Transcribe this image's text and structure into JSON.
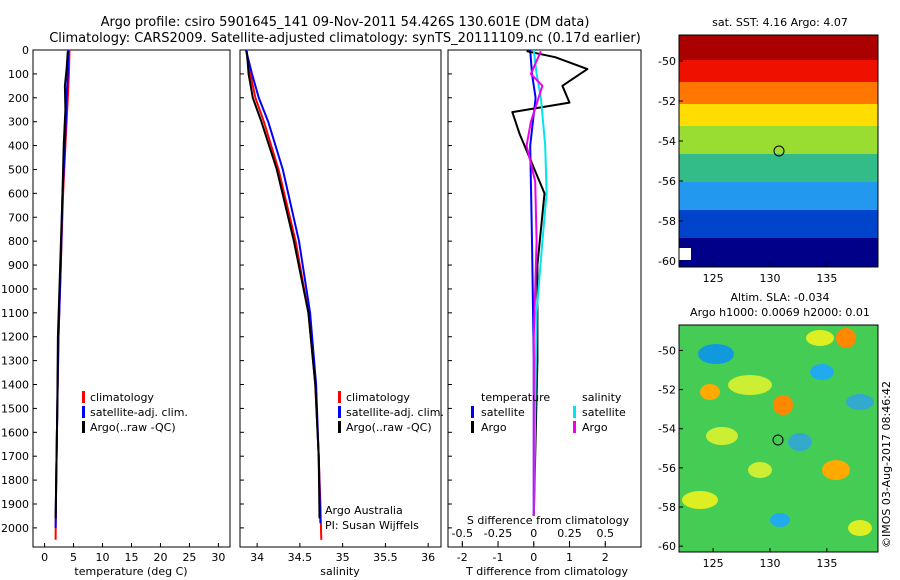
{
  "figure": {
    "title_line1": "Argo profile: csiro 5901645_141 09-Nov-2011 54.426S 130.601E (DM data)",
    "title_line2": "Climatology: CARS2009. Satellite-adjusted climatology: synTS_20111109.nc (0.17d earlier)",
    "footer": "©IMOS 03-Aug-2017 08:46:42",
    "credit_line1": "Argo Australia",
    "credit_line2": "PI: Susan Wijffels"
  },
  "colors": {
    "climatology": "#ff0000",
    "satellite": "#0000ff",
    "argo": "#000000",
    "salinity_satellite": "#00e5ee",
    "salinity_argo": "#ee00ee"
  },
  "legend": {
    "climatology": "climatology",
    "satellite": "satellite-adj. clim.",
    "argo": "Argo(..raw -QC)"
  },
  "diff_legend": {
    "temperature": "temperature",
    "salinity": "salinity",
    "satellite": "satellite",
    "argo": "Argo"
  },
  "sst_map": {
    "title": "sat. SST: 4.16  Argo: 4.07"
  },
  "sla_map": {
    "title_line1": "Altim. SLA: -0.034",
    "title_line2": "Argo h1000: 0.0069  h2000: 0.01"
  },
  "chart_data": [
    {
      "type": "line",
      "name": "temperature-profile",
      "xlabel": "temperature (deg C)",
      "xlim": [
        -2,
        32
      ],
      "ylim": [
        2080,
        0
      ],
      "x_ticks": [
        0,
        5,
        10,
        15,
        20,
        25,
        30
      ],
      "y_ticks": [
        0,
        100,
        200,
        300,
        400,
        500,
        600,
        700,
        800,
        900,
        1000,
        1100,
        1200,
        1300,
        1400,
        1500,
        1600,
        1700,
        1800,
        1900,
        2000
      ],
      "series": [
        {
          "name": "climatology",
          "x": [
            4.3,
            4.2,
            4.0,
            3.6,
            3.2,
            2.8,
            2.4,
            2.2,
            2.0,
            1.9
          ],
          "depth": [
            0,
            100,
            200,
            400,
            600,
            900,
            1200,
            1500,
            1800,
            2050
          ]
        },
        {
          "name": "satellite-adj. clim.",
          "x": [
            4.1,
            4.0,
            3.8,
            3.5,
            3.1,
            2.8,
            2.4,
            2.2,
            2.0,
            1.9
          ],
          "depth": [
            0,
            100,
            200,
            400,
            600,
            900,
            1200,
            1500,
            1800,
            2000
          ]
        },
        {
          "name": "Argo(..raw -QC)",
          "x": [
            4.0,
            3.8,
            3.5,
            3.6,
            3.3,
            3.1,
            2.7,
            2.3,
            2.2,
            2.0,
            1.9
          ],
          "depth": [
            5,
            80,
            150,
            250,
            400,
            600,
            900,
            1200,
            1500,
            1800,
            1960
          ]
        }
      ]
    },
    {
      "type": "line",
      "name": "salinity-profile",
      "xlabel": "salinity",
      "xlim": [
        33.8,
        36.15
      ],
      "ylim": [
        2080,
        0
      ],
      "x_ticks": [
        34,
        34.5,
        35,
        35.5,
        36
      ],
      "x_tick_labels": [
        "34",
        "34.5",
        "35",
        "35.5",
        "36"
      ],
      "series": [
        {
          "name": "climatology",
          "x": [
            33.87,
            33.92,
            33.98,
            34.08,
            34.25,
            34.45,
            34.6,
            34.68,
            34.72,
            34.74,
            34.75
          ],
          "depth": [
            0,
            100,
            200,
            300,
            500,
            800,
            1100,
            1400,
            1700,
            1900,
            2050
          ]
        },
        {
          "name": "satellite-adj. clim.",
          "x": [
            33.87,
            33.94,
            34.02,
            34.13,
            34.3,
            34.49,
            34.62,
            34.69,
            34.72,
            34.74
          ],
          "depth": [
            0,
            100,
            200,
            300,
            500,
            800,
            1100,
            1400,
            1700,
            1980
          ]
        },
        {
          "name": "Argo(..raw -QC)",
          "x": [
            33.88,
            33.9,
            33.95,
            34.05,
            34.23,
            34.43,
            34.6,
            34.68,
            34.72,
            34.73
          ],
          "depth": [
            5,
            100,
            200,
            300,
            500,
            800,
            1100,
            1400,
            1700,
            1960
          ]
        }
      ]
    },
    {
      "type": "line",
      "name": "difference-profile",
      "xlabel": "T difference from climatology",
      "x2label": "S difference from climatology",
      "xlim": [
        -2.4,
        3.0
      ],
      "x2lim": [
        -0.6,
        0.75
      ],
      "ylim": [
        2080,
        0
      ],
      "x_ticks": [
        -2,
        -1,
        0,
        1,
        2
      ],
      "x2_ticks": [
        -0.5,
        -0.25,
        0,
        0.25,
        0.5
      ],
      "x2_tick_labels": [
        "-0.5",
        "-0.25",
        "0",
        "0.25",
        "0.5"
      ],
      "series": [
        {
          "name": "temperature satellite",
          "axis": "T",
          "x": [
            -0.1,
            -0.05,
            0.05,
            -0.1,
            -0.05,
            0,
            0
          ],
          "depth": [
            0,
            100,
            200,
            400,
            800,
            1300,
            1950
          ]
        },
        {
          "name": "temperature Argo",
          "axis": "T",
          "x": [
            -0.2,
            0.6,
            1.5,
            0.8,
            1.0,
            -0.6,
            -0.4,
            0.3,
            0.1,
            0.1,
            0
          ],
          "depth": [
            5,
            30,
            80,
            150,
            220,
            260,
            350,
            600,
            900,
            1300,
            1950
          ]
        },
        {
          "name": "salinity satellite",
          "axis": "S",
          "x": [
            0.0,
            0.02,
            0.05,
            0.08,
            0.09,
            0.06,
            0.02,
            0.0
          ],
          "depth": [
            0,
            100,
            200,
            400,
            600,
            800,
            1100,
            1950
          ]
        },
        {
          "name": "salinity Argo",
          "axis": "S",
          "x": [
            0.05,
            -0.02,
            0.06,
            -0.02,
            -0.05,
            0.01,
            0.02,
            0.0,
            0.0
          ],
          "depth": [
            5,
            100,
            150,
            300,
            400,
            550,
            800,
            1200,
            1950
          ]
        }
      ]
    },
    {
      "type": "heatmap",
      "name": "sst-map",
      "xlim": [
        122,
        139.5
      ],
      "ylim": [
        -60.3,
        -48.7
      ],
      "x_ticks": [
        125,
        130,
        135
      ],
      "y_ticks": [
        -50,
        -52,
        -54,
        -56,
        -58,
        -60
      ],
      "profile_location": {
        "lon": 130.6,
        "lat": -54.43
      }
    },
    {
      "type": "heatmap",
      "name": "sla-map",
      "xlim": [
        122,
        139.5
      ],
      "ylim": [
        -60.3,
        -48.7
      ],
      "x_ticks": [
        125,
        130,
        135
      ],
      "y_ticks": [
        -50,
        -52,
        -54,
        -56,
        -58,
        -60
      ],
      "profile_location": {
        "lon": 130.6,
        "lat": -54.43
      }
    }
  ]
}
